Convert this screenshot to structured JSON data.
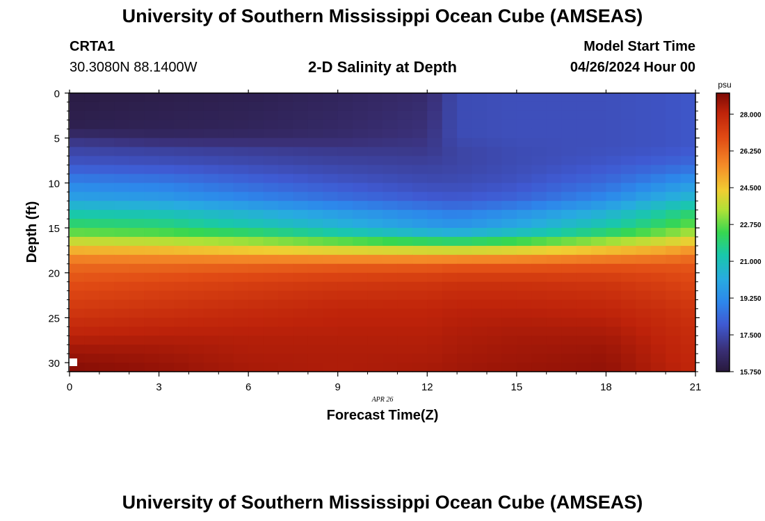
{
  "header": {
    "title": "University of Southern Mississippi Ocean Cube (AMSEAS)",
    "station_id": "CRTA1",
    "coordinates": "30.3080N  88.1400W",
    "plot_title": "2-D Salinity at Depth",
    "model_start_label": "Model Start Time",
    "model_start_value": "04/26/2024 Hour 00"
  },
  "footer": {
    "title": "University of Southern Mississippi Ocean Cube (AMSEAS)"
  },
  "chart_data": {
    "type": "heatmap",
    "xlabel": "Forecast Time(Z)",
    "ylabel": "Depth (ft)",
    "date_label": "APR 26",
    "x_ticks": [
      0,
      3,
      6,
      9,
      12,
      15,
      18,
      21
    ],
    "y_ticks": [
      0,
      5,
      10,
      15,
      20,
      25,
      30
    ],
    "xlim": [
      0,
      21
    ],
    "ylim": [
      0,
      31
    ],
    "y_inverted": true,
    "colorbar": {
      "unit": "psu",
      "ticks": [
        "28.000",
        "26.250",
        "24.500",
        "22.750",
        "21.000",
        "19.250",
        "17.500",
        "15.750"
      ],
      "range": [
        15.75,
        29.0
      ]
    },
    "x_hours": [
      0,
      3,
      6,
      9,
      12,
      13,
      15,
      18,
      20,
      21
    ],
    "depths_ft": [
      0,
      2,
      4,
      5,
      6,
      8,
      10,
      12,
      13,
      15,
      16,
      17,
      18,
      19,
      21,
      24,
      27,
      29,
      31
    ],
    "salinity_psu": [
      [
        15.9,
        16.0,
        16.1,
        16.3,
        16.6,
        17.6,
        17.7,
        17.7,
        17.8,
        17.9
      ],
      [
        16.0,
        16.1,
        16.2,
        16.4,
        16.7,
        17.6,
        17.7,
        17.7,
        17.8,
        17.9
      ],
      [
        16.1,
        16.2,
        16.3,
        16.5,
        16.8,
        17.6,
        17.7,
        17.7,
        17.8,
        17.9
      ],
      [
        16.8,
        16.5,
        16.5,
        16.6,
        16.9,
        17.6,
        17.7,
        17.7,
        17.8,
        17.9
      ],
      [
        17.3,
        17.2,
        17.1,
        17.0,
        17.0,
        17.4,
        17.6,
        17.7,
        17.8,
        17.9
      ],
      [
        17.9,
        17.8,
        17.6,
        17.4,
        17.3,
        17.4,
        17.6,
        17.9,
        18.2,
        18.4
      ],
      [
        19.0,
        18.8,
        18.3,
        17.9,
        17.6,
        17.6,
        17.8,
        18.4,
        19.2,
        19.6
      ],
      [
        20.0,
        19.8,
        19.2,
        18.6,
        18.1,
        18.0,
        18.3,
        19.3,
        20.4,
        20.8
      ],
      [
        21.0,
        20.8,
        20.2,
        19.5,
        18.9,
        18.7,
        19.2,
        20.2,
        21.3,
        21.8
      ],
      [
        22.3,
        22.1,
        21.4,
        20.6,
        19.8,
        19.6,
        20.2,
        21.4,
        22.4,
        23.0
      ],
      [
        23.2,
        23.0,
        22.7,
        22.0,
        21.2,
        21.0,
        21.5,
        22.5,
        23.4,
        23.8
      ],
      [
        24.4,
        24.2,
        23.8,
        23.4,
        23.1,
        23.0,
        23.3,
        24.0,
        24.5,
        24.9
      ],
      [
        25.4,
        25.3,
        25.1,
        24.9,
        24.8,
        24.8,
        24.9,
        25.3,
        25.6,
        26.0
      ],
      [
        26.2,
        26.2,
        26.3,
        26.4,
        26.4,
        26.5,
        26.5,
        26.6,
        26.6,
        26.6
      ],
      [
        26.8,
        27.0,
        27.2,
        27.4,
        27.5,
        27.6,
        27.6,
        27.5,
        27.2,
        27.0
      ],
      [
        27.4,
        27.6,
        27.8,
        28.0,
        28.0,
        28.1,
        28.1,
        28.0,
        27.7,
        27.5
      ],
      [
        28.1,
        28.2,
        28.2,
        28.2,
        28.2,
        28.3,
        28.4,
        28.4,
        28.0,
        27.8
      ],
      [
        28.6,
        28.5,
        28.3,
        28.3,
        28.3,
        28.4,
        28.5,
        28.6,
        28.1,
        27.9
      ],
      [
        28.9,
        28.7,
        28.4,
        28.3,
        28.4,
        28.5,
        28.6,
        28.7,
        28.2,
        28.0
      ]
    ]
  }
}
